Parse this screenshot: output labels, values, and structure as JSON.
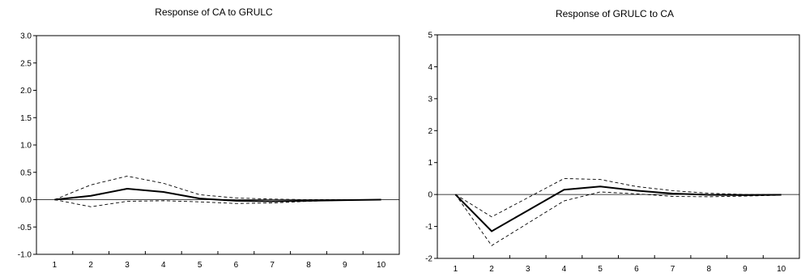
{
  "chart_data": [
    {
      "type": "line",
      "title": "Response of CA to GRULC",
      "xlabel": "",
      "ylabel": "",
      "x": [
        1,
        2,
        3,
        4,
        5,
        6,
        7,
        8,
        9,
        10
      ],
      "xticks": [
        "1",
        "2",
        "3",
        "4",
        "5",
        "6",
        "7",
        "8",
        "9",
        "10"
      ],
      "ylim": [
        -1.0,
        3.0
      ],
      "yticks": [
        "-1.0",
        "-0.5",
        "0.0",
        "0.5",
        "1.0",
        "1.5",
        "2.0",
        "2.5",
        "3.0"
      ],
      "yticks_values": [
        -1.0,
        -0.5,
        0.0,
        0.5,
        1.0,
        1.5,
        2.0,
        2.5,
        3.0
      ],
      "grid": false,
      "zero_line": true,
      "series": [
        {
          "style": "solid",
          "values": [
            0.0,
            0.07,
            0.2,
            0.14,
            0.02,
            -0.02,
            -0.03,
            -0.02,
            -0.01,
            0.0
          ]
        },
        {
          "style": "dashed",
          "values": [
            0.0,
            0.27,
            0.43,
            0.3,
            0.09,
            0.03,
            0.01,
            0.0,
            0.0,
            0.0
          ]
        },
        {
          "style": "dashed",
          "values": [
            0.0,
            -0.13,
            -0.03,
            -0.02,
            -0.04,
            -0.07,
            -0.06,
            -0.03,
            -0.01,
            0.0
          ]
        }
      ]
    },
    {
      "type": "line",
      "title": "Response of GRULC to CA",
      "xlabel": "",
      "ylabel": "",
      "x": [
        1,
        2,
        3,
        4,
        5,
        6,
        7,
        8,
        9,
        10
      ],
      "xticks": [
        "1",
        "2",
        "3",
        "4",
        "5",
        "6",
        "7",
        "8",
        "9",
        "10"
      ],
      "ylim": [
        -2,
        5
      ],
      "yticks": [
        "-2",
        "-1",
        "0",
        "1",
        "2",
        "3",
        "4",
        "5"
      ],
      "yticks_values": [
        -2,
        -1,
        0,
        1,
        2,
        3,
        4,
        5
      ],
      "grid": false,
      "zero_line": true,
      "series": [
        {
          "style": "solid",
          "values": [
            0.0,
            -1.15,
            -0.5,
            0.15,
            0.25,
            0.12,
            0.03,
            -0.01,
            -0.02,
            -0.01
          ]
        },
        {
          "style": "dashed",
          "values": [
            0.0,
            -0.7,
            -0.1,
            0.5,
            0.47,
            0.25,
            0.12,
            0.04,
            0.0,
            0.0
          ]
        },
        {
          "style": "dashed",
          "values": [
            0.0,
            -1.6,
            -0.9,
            -0.2,
            0.08,
            0.02,
            -0.06,
            -0.07,
            -0.05,
            -0.02
          ]
        }
      ]
    }
  ]
}
